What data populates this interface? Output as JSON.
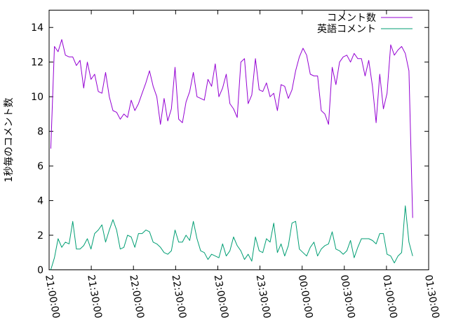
{
  "chart_data": {
    "type": "line",
    "ylabel": "1秒毎のコメント数",
    "ylim": [
      0,
      15
    ],
    "y_ticks": [
      "0",
      "2",
      "4",
      "6",
      "8",
      "10",
      "12",
      "14"
    ],
    "y_tick_values": [
      0,
      2,
      4,
      6,
      8,
      10,
      12,
      14
    ],
    "x_tick_labels": [
      "21:00:00",
      "21:30:00",
      "22:00:00",
      "22:30:00",
      "23:00:00",
      "23:30:00",
      "00:00:00",
      "00:30:00",
      "01:00:00",
      "01:30:00"
    ],
    "x_range_minutes": [
      0,
      270
    ],
    "x_step_minutes": 2.6,
    "legend_position": "top-right",
    "grid": false,
    "series": [
      {
        "name": "コメント数",
        "color": "#9400d3",
        "values": [
          7.0,
          12.9,
          12.6,
          13.3,
          12.4,
          12.3,
          12.3,
          11.8,
          12.1,
          10.5,
          12.0,
          11.0,
          11.3,
          10.3,
          10.2,
          11.4,
          10.0,
          9.2,
          9.1,
          8.7,
          9.0,
          8.8,
          9.8,
          9.2,
          9.6,
          10.2,
          10.8,
          11.5,
          10.6,
          10.0,
          8.4,
          9.9,
          8.6,
          9.3,
          11.7,
          8.7,
          8.5,
          9.7,
          10.3,
          11.4,
          10.0,
          9.9,
          9.8,
          11.0,
          10.6,
          11.9,
          10.0,
          10.5,
          11.3,
          9.6,
          9.3,
          8.8,
          12.0,
          12.2,
          9.6,
          10.1,
          12.2,
          10.4,
          10.3,
          10.8,
          10.0,
          10.2,
          9.2,
          10.7,
          10.6,
          9.9,
          10.4,
          11.5,
          12.3,
          12.8,
          12.4,
          11.3,
          11.2,
          11.2,
          9.2,
          9.0,
          8.4,
          11.7,
          10.7,
          12.0,
          12.3,
          12.4,
          12.0,
          12.5,
          12.2,
          12.2,
          11.2,
          12.1,
          10.6,
          8.5,
          11.3,
          9.3,
          10.2,
          13.0,
          12.4,
          12.7,
          12.9,
          12.5,
          11.5,
          3.0
        ]
      },
      {
        "name": "英語コメント",
        "color": "#009e73",
        "values": [
          0.0,
          0.7,
          1.8,
          1.3,
          1.6,
          1.5,
          2.8,
          1.2,
          1.2,
          1.4,
          1.8,
          1.2,
          2.1,
          2.3,
          2.6,
          1.6,
          2.3,
          2.9,
          2.3,
          1.2,
          1.3,
          2.0,
          1.9,
          1.3,
          2.1,
          2.1,
          2.3,
          2.2,
          1.6,
          1.5,
          1.3,
          1.0,
          0.9,
          1.1,
          2.3,
          1.6,
          1.6,
          2.0,
          1.7,
          2.8,
          1.8,
          1.1,
          1.0,
          0.6,
          0.9,
          0.8,
          0.7,
          1.5,
          0.8,
          1.1,
          1.9,
          1.4,
          1.1,
          0.6,
          0.9,
          0.5,
          1.9,
          1.1,
          1.0,
          1.8,
          1.6,
          2.7,
          1.0,
          1.5,
          0.8,
          1.4,
          2.7,
          2.8,
          1.2,
          1.0,
          0.8,
          1.3,
          1.6,
          0.8,
          1.2,
          1.4,
          1.5,
          2.2,
          1.2,
          1.1,
          0.9,
          1.1,
          1.7,
          0.7,
          1.3,
          1.8,
          1.8,
          1.8,
          1.7,
          1.5,
          2.1,
          2.1,
          0.9,
          0.8,
          0.4,
          0.8,
          1.0,
          3.7,
          1.6,
          0.8
        ]
      }
    ]
  }
}
